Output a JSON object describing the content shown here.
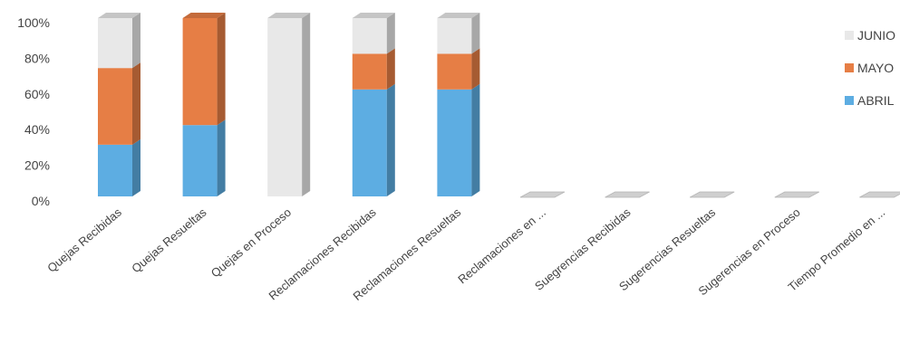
{
  "chart_data": {
    "type": "bar",
    "stacked": "percent",
    "three_d": true,
    "title": "",
    "xlabel": "",
    "ylabel": "",
    "ylim": [
      0,
      100
    ],
    "y_ticks": [
      "0%",
      "20%",
      "40%",
      "60%",
      "80%",
      "100%"
    ],
    "grid": false,
    "legend_position": "right",
    "categories": [
      "Quejas Recibidas",
      "Quejas Resueltas",
      "Quejas en Proceso",
      "Reclamaciones Recibidas",
      "Reclamaciones Resueltas",
      "Reclamaciones en ...",
      "Suegrencias Recibidas",
      "Sugerencias Resueltas",
      "Sugerencias en Proceso",
      "Tiempo Promedio en ..."
    ],
    "series": [
      {
        "name": "ABRIL",
        "color": "#5dade2",
        "values": [
          29,
          40,
          0,
          60,
          60,
          0,
          0,
          0,
          0,
          0
        ]
      },
      {
        "name": "MAYO",
        "color": "#e67e45",
        "values": [
          43,
          60,
          0,
          20,
          20,
          0,
          0,
          0,
          0,
          0
        ]
      },
      {
        "name": "JUNIO",
        "color": "#e8e8e8",
        "values": [
          28,
          0,
          100,
          20,
          20,
          0,
          0,
          0,
          0,
          0
        ]
      }
    ],
    "legend_order": [
      "JUNIO",
      "MAYO",
      "ABRIL"
    ]
  }
}
